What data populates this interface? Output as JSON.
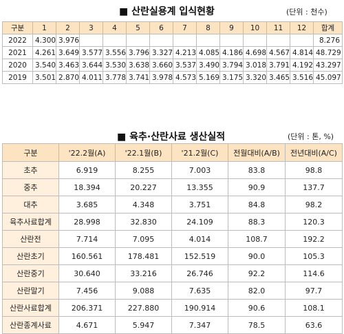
{
  "section1": {
    "title": "■ 산란실용계 입식현황",
    "unit": "(단위 : 천수)",
    "headers": [
      "구분",
      "1",
      "2",
      "3",
      "4",
      "5",
      "6",
      "7",
      "8",
      "9",
      "10",
      "11",
      "12",
      "합계"
    ],
    "rows": [
      [
        "2022",
        "4.300",
        "3.976",
        "",
        "",
        "",
        "",
        "",
        "",
        "",
        "",
        "",
        "",
        "8.276"
      ],
      [
        "2021",
        "4.261",
        "3.649",
        "3.577",
        "3.556",
        "3.796",
        "3.327",
        "4.213",
        "4.085",
        "4.186",
        "4.698",
        "4.567",
        "4.814",
        "48.729"
      ],
      [
        "2020",
        "3.540",
        "3.463",
        "3.644",
        "3.530",
        "3.638",
        "3.660",
        "3.537",
        "3.490",
        "3.794",
        "3.018",
        "3.791",
        "4.192",
        "43.297"
      ],
      [
        "2019",
        "3.501",
        "2.870",
        "4.011",
        "3.778",
        "3.741",
        "3.978",
        "4.573",
        "5.169",
        "3.175",
        "3.320",
        "3.465",
        "3.516",
        "45.097"
      ]
    ]
  },
  "section2": {
    "title": "■ 육추·산란사료 생산실적",
    "unit": "(단위 : 톤, %)",
    "headers": [
      "구분",
      "'22.2월(A)",
      "'22.1월(B)",
      "'21.2월(C)",
      "전월대비(A/B)",
      "전년대비(A/C)"
    ],
    "rows": [
      [
        "초추",
        "6.919",
        "8.255",
        "7.003",
        "83.8",
        "98.8"
      ],
      [
        "중추",
        "18.394",
        "20.227",
        "13.355",
        "90.9",
        "137.7"
      ],
      [
        "대추",
        "3.685",
        "4.348",
        "3.751",
        "84.8",
        "98.2"
      ],
      [
        "육추사료합계",
        "28.998",
        "32.830",
        "24.109",
        "88.3",
        "120.3"
      ],
      [
        "산란전",
        "7.714",
        "7.095",
        "4.014",
        "108.7",
        "192.2"
      ],
      [
        "산란초기",
        "160.561",
        "178.481",
        "152.519",
        "90.0",
        "105.3"
      ],
      [
        "산란중기",
        "30.640",
        "33.216",
        "26.746",
        "92.2",
        "114.6"
      ],
      [
        "산란말기",
        "7.456",
        "9.088",
        "7.635",
        "82.0",
        "97.7"
      ],
      [
        "산란사료합계",
        "206.371",
        "227.880",
        "190.914",
        "90.6",
        "108.1"
      ],
      [
        "산란종계사료",
        "4.671",
        "5.947",
        "7.347",
        "78.5",
        "63.6"
      ]
    ]
  }
}
